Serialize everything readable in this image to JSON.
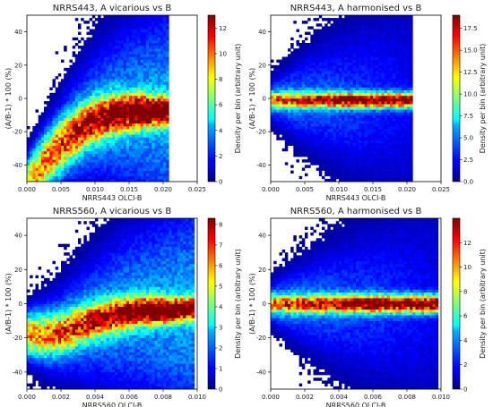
{
  "chart_data": [
    {
      "type": "heatmap",
      "title": "NRRS443, A vicarious vs B",
      "xlabel": "NRRS443 OLCI-B",
      "ylabel": "(A/B-1) * 100 (%)",
      "colorbar_label": "Density per bin (arbitrary unit)",
      "xlim": [
        0.0,
        0.025
      ],
      "ylim": [
        -50,
        50
      ],
      "xticks": [
        "0.000",
        "0.005",
        "0.010",
        "0.015",
        "0.020",
        "0.025"
      ],
      "yticks": [
        "40",
        "20",
        "0",
        "-20",
        "-40"
      ],
      "colorbar_range": [
        0,
        13
      ],
      "colorbar_ticks": [
        "12",
        "10",
        "8",
        "6",
        "4",
        "2",
        "0"
      ],
      "colormap": "jet",
      "data_xmax": 0.021,
      "ridge": {
        "x": [
          0.0,
          0.003,
          0.006,
          0.009,
          0.012,
          0.015,
          0.018,
          0.021
        ],
        "y": [
          -52,
          -36,
          -24,
          -15,
          -10,
          -8,
          -7.5,
          -7
        ]
      }
    },
    {
      "type": "heatmap",
      "title": "NRRS443, A harmonised vs B",
      "xlabel": "NRRS443 OLCI-B",
      "ylabel": "(A/B-1) * 100 (%)",
      "colorbar_label": "Density per bin (arbitrary unit)",
      "xlim": [
        0.0,
        0.025
      ],
      "ylim": [
        -50,
        50
      ],
      "xticks": [
        "0.000",
        "0.005",
        "0.010",
        "0.015",
        "0.020",
        "0.025"
      ],
      "yticks": [
        "40",
        "20",
        "0",
        "-20",
        "-40"
      ],
      "colorbar_range": [
        0,
        19
      ],
      "colorbar_ticks": [
        "17.5",
        "15.0",
        "12.5",
        "10.0",
        "7.5",
        "5.0",
        "2.5",
        "0.0"
      ],
      "colormap": "jet",
      "data_xmax": 0.021,
      "ridge": {
        "x": [
          0.0,
          0.007,
          0.014,
          0.021
        ],
        "y": [
          -1,
          -1,
          -1,
          -1
        ]
      }
    },
    {
      "type": "heatmap",
      "title": "NRRS560, A vicarious vs B",
      "xlabel": "NRRS560 OLCI-B",
      "ylabel": "(A/B-1) * 100 (%)",
      "colorbar_label": "Density per bin (arbitrary unit)",
      "xlim": [
        0.0,
        0.01
      ],
      "ylim": [
        -50,
        50
      ],
      "xticks": [
        "0.000",
        "0.002",
        "0.004",
        "0.006",
        "0.008",
        "0.010"
      ],
      "yticks": [
        "40",
        "20",
        "0",
        "-20",
        "-40"
      ],
      "colorbar_range": [
        0,
        8.3
      ],
      "colorbar_ticks": [
        "8",
        "7",
        "6",
        "5",
        "4",
        "3",
        "2",
        "1",
        "0"
      ],
      "colormap": "jet",
      "data_xmax": 0.0098,
      "ridge": {
        "x": [
          0.0012,
          0.002,
          0.003,
          0.004,
          0.005,
          0.006,
          0.007,
          0.008,
          0.0095
        ],
        "y": [
          -18,
          -17,
          -13,
          -10,
          -7,
          -5,
          -4,
          -4,
          -3
        ]
      }
    },
    {
      "type": "heatmap",
      "title": "NRRS560, A harmonised vs B",
      "xlabel": "NRRS560 OLCI-B",
      "ylabel": "(A/B-1) * 100 (%)",
      "colorbar_label": "Density per bin (arbitrary unit)",
      "xlim": [
        0.0,
        0.01
      ],
      "ylim": [
        -50,
        50
      ],
      "xticks": [
        "0.000",
        "0.002",
        "0.004",
        "0.006",
        "0.008",
        "0.010"
      ],
      "yticks": [
        "40",
        "20",
        "0",
        "-20",
        "-40"
      ],
      "colorbar_range": [
        0,
        14
      ],
      "colorbar_ticks": [
        "12",
        "10",
        "8",
        "6",
        "4",
        "2",
        "0"
      ],
      "colormap": "jet",
      "data_xmax": 0.0098,
      "ridge": {
        "x": [
          0.0012,
          0.004,
          0.007,
          0.0098
        ],
        "y": [
          0,
          0,
          0,
          0
        ]
      }
    }
  ]
}
